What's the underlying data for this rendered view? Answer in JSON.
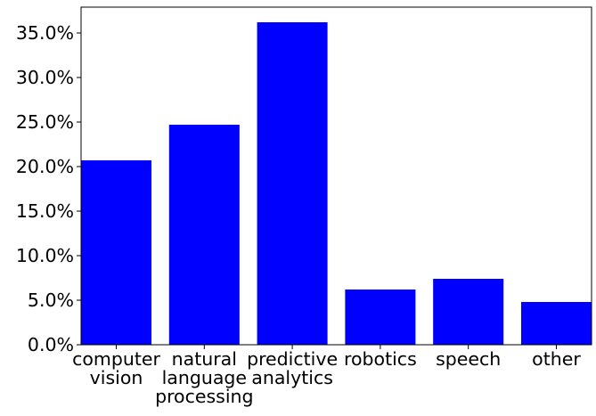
{
  "chart_data": {
    "type": "bar",
    "title": "",
    "xlabel": "",
    "ylabel": "",
    "categories": [
      [
        "computer",
        "vision"
      ],
      [
        "natural",
        "language",
        "processing"
      ],
      [
        "predictive",
        "analytics"
      ],
      [
        "robotics"
      ],
      [
        "speech"
      ],
      [
        "other"
      ]
    ],
    "values": [
      20.7,
      24.7,
      36.2,
      6.2,
      7.4,
      4.8
    ],
    "value_unit": "%",
    "ylim": [
      0,
      37.9
    ],
    "yticks": [
      0,
      5,
      10,
      15,
      20,
      25,
      30,
      35
    ],
    "ytick_labels": [
      "0.0%",
      "5.0%",
      "10.0%",
      "15.0%",
      "20.0%",
      "25.0%",
      "30.0%",
      "35.0%"
    ],
    "bar_color": "#0000ff",
    "grid": false,
    "legend": "none"
  }
}
